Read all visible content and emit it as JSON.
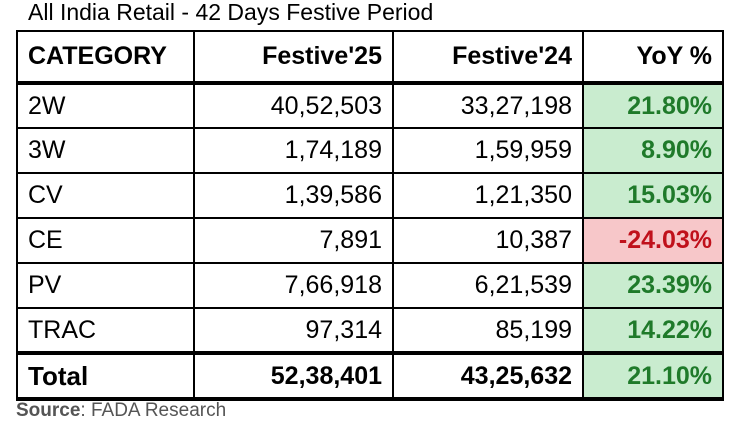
{
  "title": "All India Retail - 42 Days Festive Period",
  "table": {
    "headers": [
      "CATEGORY",
      "Festive'25",
      "Festive'24",
      "YoY %"
    ],
    "rows": [
      {
        "category": "2W",
        "f25": "40,52,503",
        "f24": "33,27,198",
        "yoy": "21.80%",
        "trend": "positive"
      },
      {
        "category": "3W",
        "f25": "1,74,189",
        "f24": "1,59,959",
        "yoy": "8.90%",
        "trend": "positive"
      },
      {
        "category": "CV",
        "f25": "1,39,586",
        "f24": "1,21,350",
        "yoy": "15.03%",
        "trend": "positive"
      },
      {
        "category": "CE",
        "f25": "7,891",
        "f24": "10,387",
        "yoy": "-24.03%",
        "trend": "negative"
      },
      {
        "category": "PV",
        "f25": "7,66,918",
        "f24": "6,21,539",
        "yoy": "23.39%",
        "trend": "positive"
      },
      {
        "category": "TRAC",
        "f25": "97,314",
        "f24": "85,199",
        "yoy": "14.22%",
        "trend": "positive"
      }
    ],
    "total": {
      "category": "Total",
      "f25": "52,38,401",
      "f24": "43,25,632",
      "yoy": "21.10%",
      "trend": "positive"
    }
  },
  "source": {
    "label": "Source",
    "text": ": FADA Research"
  },
  "colors": {
    "positive_bg": "#c9eccf",
    "positive_text": "#1f7a2a",
    "negative_bg": "#f7c7c9",
    "negative_text": "#c0111b"
  }
}
